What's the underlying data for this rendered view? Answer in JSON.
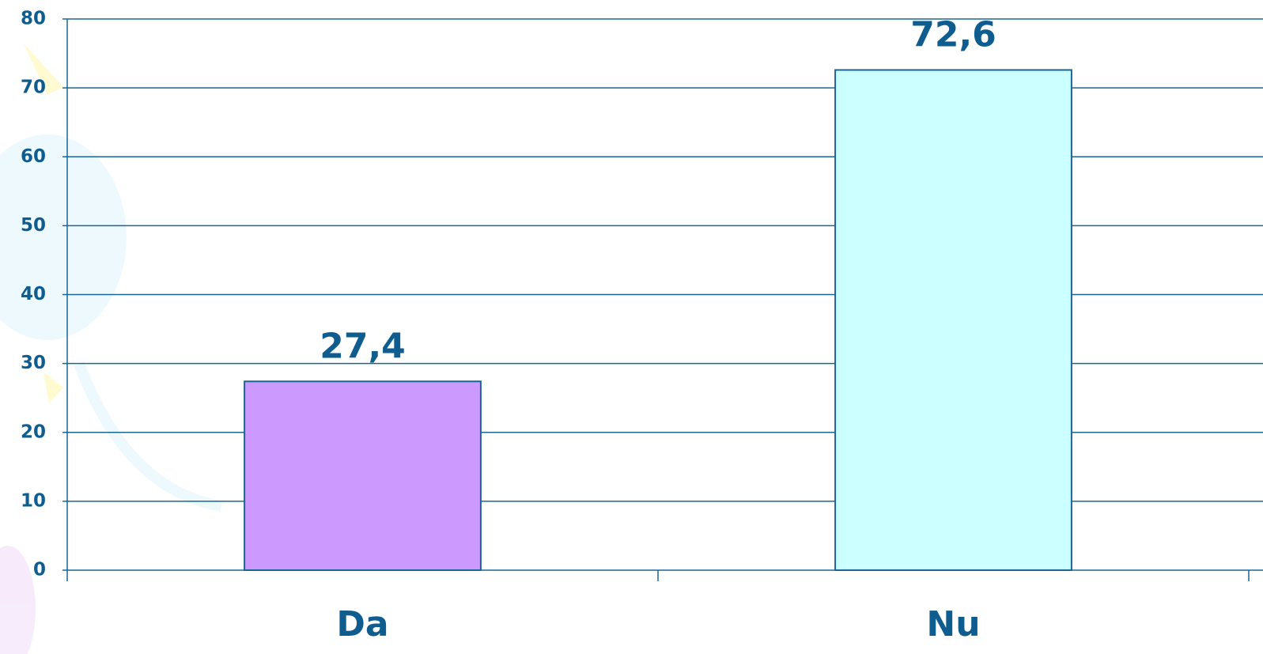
{
  "chart_data": {
    "type": "bar",
    "categories": [
      "Da",
      "Nu"
    ],
    "values": [
      27.4,
      72.6
    ],
    "value_labels": [
      "27,4",
      "72,6"
    ],
    "colors": [
      "#cc99ff",
      "#ccffff"
    ],
    "ylim": [
      0,
      80
    ],
    "yticks": [
      0,
      10,
      20,
      30,
      40,
      50,
      60,
      70,
      80
    ],
    "grid": true
  }
}
